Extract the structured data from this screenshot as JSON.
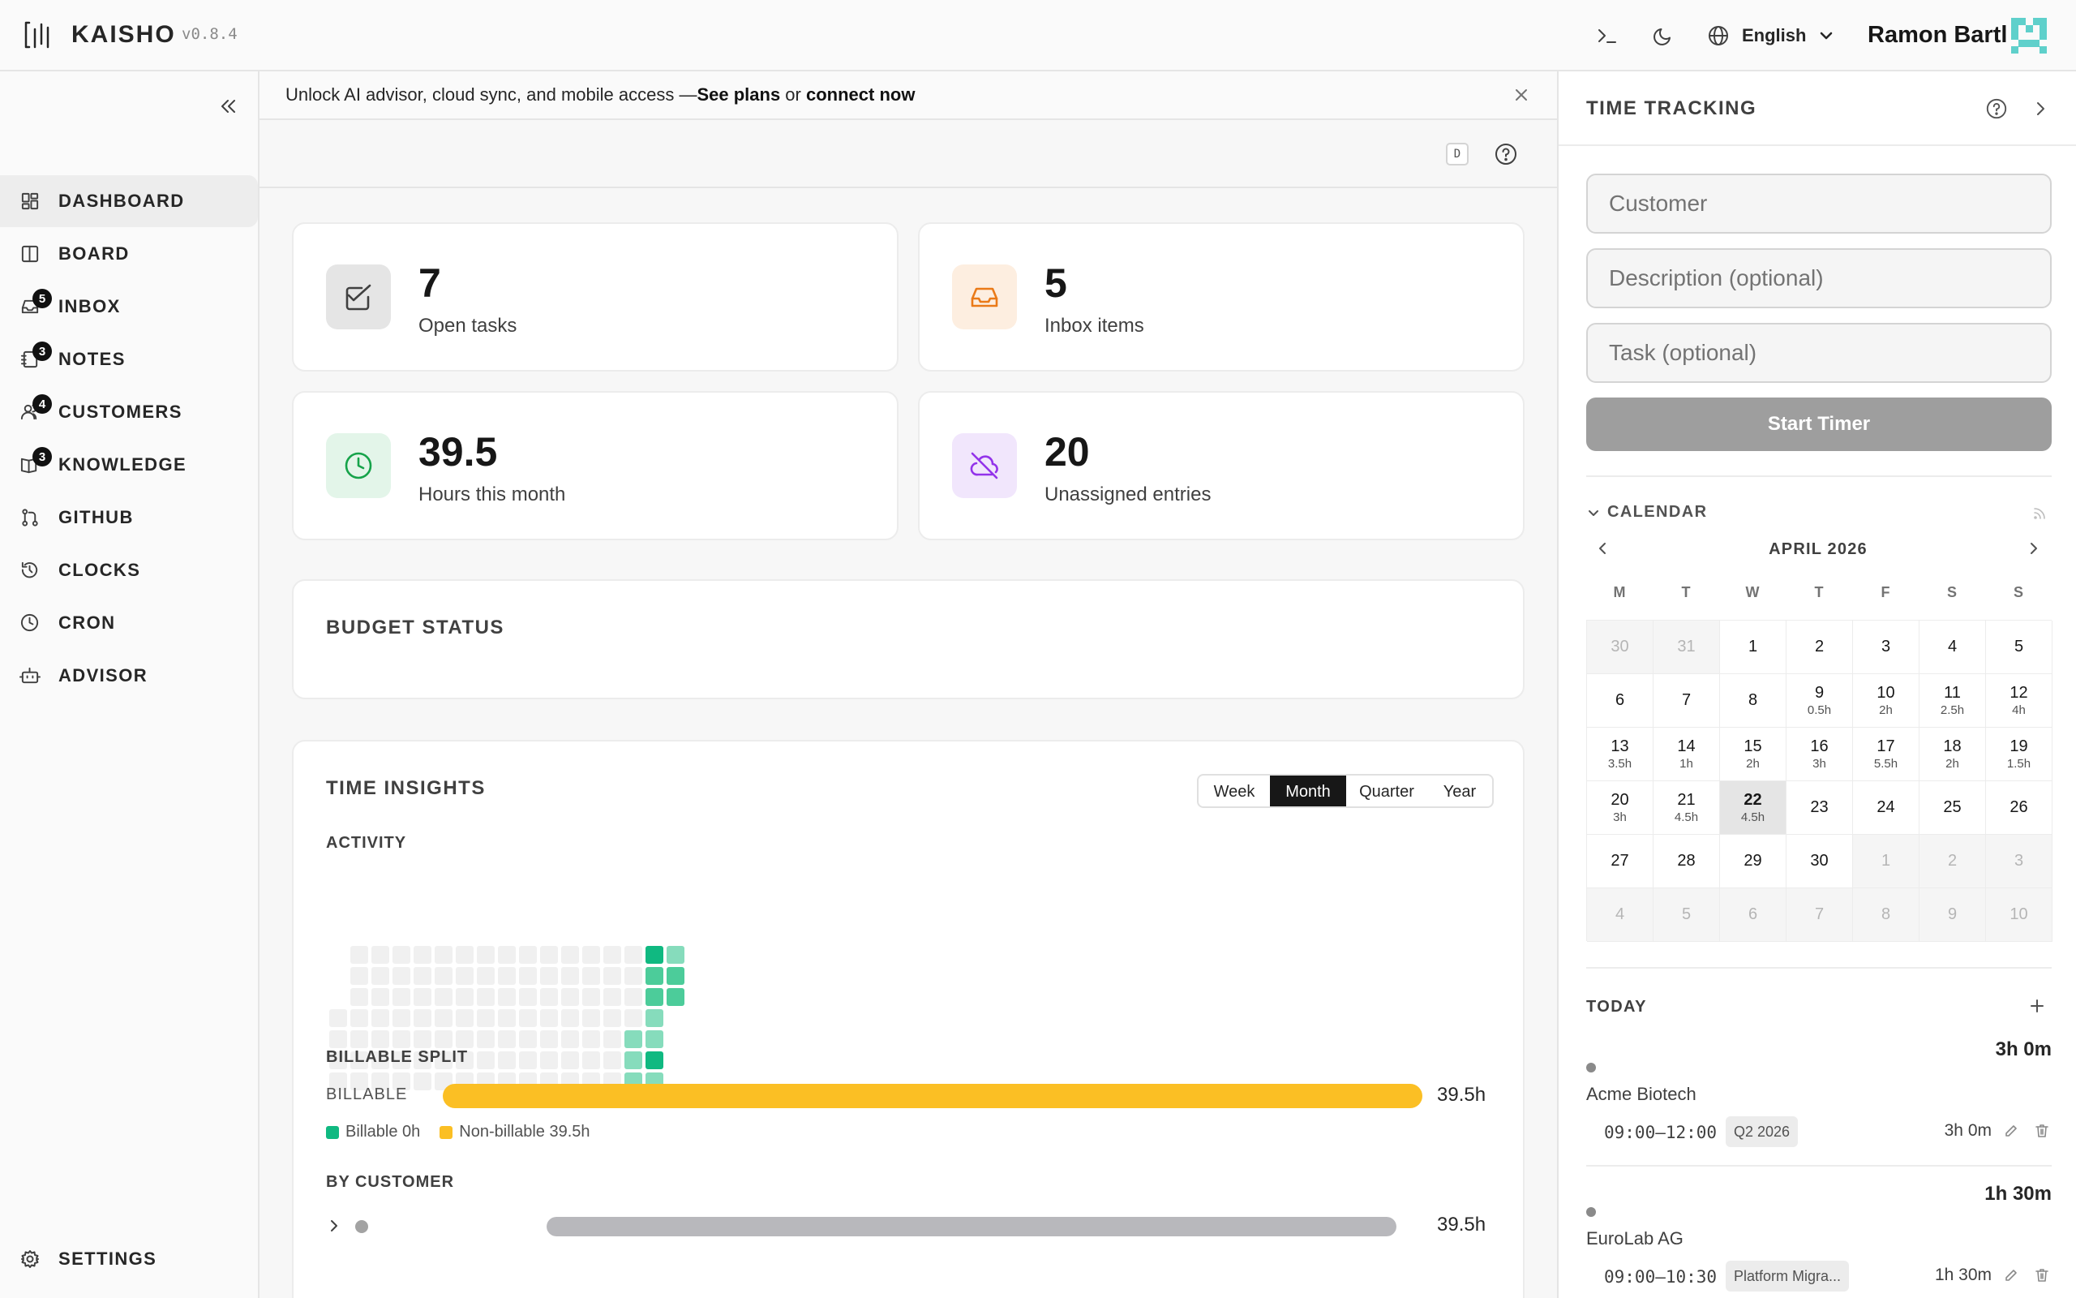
{
  "app": {
    "name": "KAISHO",
    "version": "v0.8.4"
  },
  "header": {
    "language": "English",
    "user": "Ramon Bartl"
  },
  "sidebar": {
    "items": [
      {
        "id": "dashboard",
        "label": "DASHBOARD",
        "icon": "dashboard-icon",
        "badge": null,
        "active": true
      },
      {
        "id": "board",
        "label": "BOARD",
        "icon": "board-icon",
        "badge": null
      },
      {
        "id": "inbox",
        "label": "INBOX",
        "icon": "inbox-icon",
        "badge": "5"
      },
      {
        "id": "notes",
        "label": "NOTES",
        "icon": "notebook-icon",
        "badge": "3"
      },
      {
        "id": "customers",
        "label": "CUSTOMERS",
        "icon": "users-icon",
        "badge": "4"
      },
      {
        "id": "knowledge",
        "label": "KNOWLEDGE",
        "icon": "book-icon",
        "badge": "3"
      },
      {
        "id": "github",
        "label": "GITHUB",
        "icon": "git-pull-request-icon",
        "badge": null
      },
      {
        "id": "clocks",
        "label": "CLOCKS",
        "icon": "history-icon",
        "badge": null
      },
      {
        "id": "cron",
        "label": "CRON",
        "icon": "clock-icon",
        "badge": null
      },
      {
        "id": "advisor",
        "label": "ADVISOR",
        "icon": "bot-icon",
        "badge": null
      }
    ],
    "settings_label": "SETTINGS"
  },
  "banner": {
    "text": "Unlock AI advisor, cloud sync, and mobile access — ",
    "link1": "See plans",
    "or": " or ",
    "link2": "connect now"
  },
  "toolbar": {
    "kbd": "D"
  },
  "stats": [
    {
      "value": "7",
      "label": "Open tasks",
      "icon": "check-square-icon",
      "color": "#404040",
      "bg": "#e5e5e5"
    },
    {
      "value": "5",
      "label": "Inbox items",
      "icon": "inbox-icon",
      "color": "#ea7a18",
      "bg": "#fdeee0"
    },
    {
      "value": "39.5",
      "label": "Hours this month",
      "icon": "clock-icon",
      "color": "#16a34a",
      "bg": "#e3f5e9"
    },
    {
      "value": "20",
      "label": "Unassigned entries",
      "icon": "cloud-off-icon",
      "color": "#9333ea",
      "bg": "#f1e6fc"
    }
  ],
  "budget": {
    "title": "BUDGET STATUS"
  },
  "insights": {
    "title": "TIME INSIGHTS",
    "ranges": [
      "Week",
      "Month",
      "Quarter",
      "Year"
    ],
    "active_range": "Month",
    "activity_label": "ACTIVITY",
    "billable_title": "BILLABLE SPLIT",
    "billable_row_label": "BILLABLE",
    "billable_total": "39.5h",
    "billable_fraction": 0,
    "legend_billable": "Billable 0h",
    "legend_nonbillable": "Non-billable 39.5h",
    "colors": {
      "billable": "#10b981",
      "nonbillable": "#fbbf24",
      "customer_bar": "#b8b8bc"
    },
    "customer_title": "BY CUSTOMER",
    "customer_total": "39.5h",
    "customer_fraction": 1
  },
  "timetracking": {
    "title": "TIME TRACKING",
    "customer_placeholder": "Customer",
    "description_placeholder": "Description (optional)",
    "task_placeholder": "Task (optional)",
    "start_label": "Start Timer"
  },
  "calendar": {
    "title": "CALENDAR",
    "month": "APRIL 2026",
    "weekdays": [
      "M",
      "T",
      "W",
      "T",
      "F",
      "S",
      "S"
    ],
    "weeks": [
      [
        {
          "d": "30",
          "m": true
        },
        {
          "d": "31",
          "m": true
        },
        {
          "d": "1"
        },
        {
          "d": "2"
        },
        {
          "d": "3"
        },
        {
          "d": "4"
        },
        {
          "d": "5"
        }
      ],
      [
        {
          "d": "6"
        },
        {
          "d": "7"
        },
        {
          "d": "8"
        },
        {
          "d": "9",
          "h": "0.5h"
        },
        {
          "d": "10",
          "h": "2h"
        },
        {
          "d": "11",
          "h": "2.5h"
        },
        {
          "d": "12",
          "h": "4h"
        }
      ],
      [
        {
          "d": "13",
          "h": "3.5h"
        },
        {
          "d": "14",
          "h": "1h"
        },
        {
          "d": "15",
          "h": "2h"
        },
        {
          "d": "16",
          "h": "3h"
        },
        {
          "d": "17",
          "h": "5.5h"
        },
        {
          "d": "18",
          "h": "2h"
        },
        {
          "d": "19",
          "h": "1.5h"
        }
      ],
      [
        {
          "d": "20",
          "h": "3h"
        },
        {
          "d": "21",
          "h": "4.5h"
        },
        {
          "d": "22",
          "h": "4.5h",
          "t": true
        },
        {
          "d": "23"
        },
        {
          "d": "24"
        },
        {
          "d": "25"
        },
        {
          "d": "26"
        }
      ],
      [
        {
          "d": "27"
        },
        {
          "d": "28"
        },
        {
          "d": "29"
        },
        {
          "d": "30"
        },
        {
          "d": "1",
          "m": true
        },
        {
          "d": "2",
          "m": true
        },
        {
          "d": "3",
          "m": true
        }
      ],
      [
        {
          "d": "4",
          "m": true
        },
        {
          "d": "5",
          "m": true
        },
        {
          "d": "6",
          "m": true
        },
        {
          "d": "7",
          "m": true
        },
        {
          "d": "8",
          "m": true
        },
        {
          "d": "9",
          "m": true
        },
        {
          "d": "10",
          "m": true
        }
      ]
    ]
  },
  "today": {
    "title": "TODAY",
    "entries": [
      {
        "total": "3h 0m",
        "customer": "Acme Biotech",
        "range": "09:00–12:00",
        "tag": "Q2 2026",
        "duration": "3h 0m"
      },
      {
        "total": "1h 30m",
        "customer": "EuroLab AG",
        "range": "09:00–10:30",
        "tag": "Platform Migra...",
        "duration": "1h 30m"
      }
    ]
  }
}
